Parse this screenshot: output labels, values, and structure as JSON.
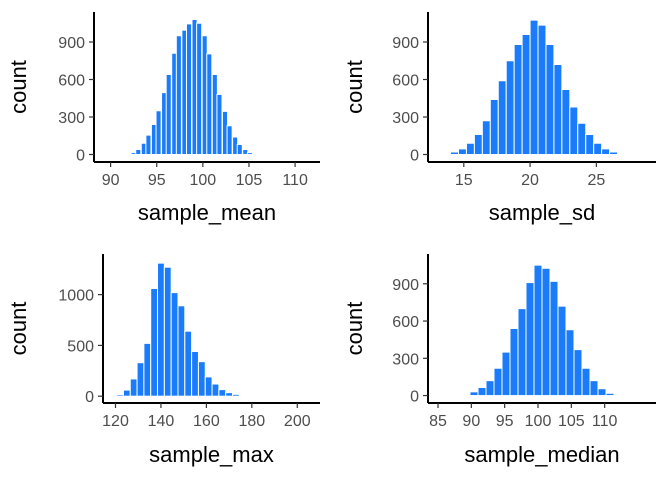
{
  "style": {
    "bar_color": "#1a7cfb",
    "bar_outline": "#ffffff"
  },
  "chart_data": [
    {
      "type": "bar",
      "xlabel": "sample_mean",
      "ylabel": "count",
      "xlim": [
        88.2,
        112.7
      ],
      "ylim": [
        -60,
        1140
      ],
      "xticks": [
        90,
        95,
        100,
        105,
        110
      ],
      "yticks": [
        0,
        300,
        600,
        900
      ],
      "bin_width": 0.55,
      "bins": [
        {
          "x": 91.9,
          "count": 5
        },
        {
          "x": 92.5,
          "count": 15
        },
        {
          "x": 93.0,
          "count": 40
        },
        {
          "x": 93.6,
          "count": 90
        },
        {
          "x": 94.1,
          "count": 155
        },
        {
          "x": 94.7,
          "count": 240
        },
        {
          "x": 95.2,
          "count": 350
        },
        {
          "x": 95.8,
          "count": 495
        },
        {
          "x": 96.3,
          "count": 640
        },
        {
          "x": 96.9,
          "count": 810
        },
        {
          "x": 97.4,
          "count": 950
        },
        {
          "x": 98.0,
          "count": 995
        },
        {
          "x": 98.5,
          "count": 1045
        },
        {
          "x": 99.1,
          "count": 1080
        },
        {
          "x": 99.6,
          "count": 1050
        },
        {
          "x": 100.2,
          "count": 950
        },
        {
          "x": 100.7,
          "count": 805
        },
        {
          "x": 101.3,
          "count": 640
        },
        {
          "x": 101.8,
          "count": 480
        },
        {
          "x": 102.4,
          "count": 345
        },
        {
          "x": 102.9,
          "count": 230
        },
        {
          "x": 103.5,
          "count": 140
        },
        {
          "x": 104.0,
          "count": 80
        },
        {
          "x": 104.6,
          "count": 40
        },
        {
          "x": 105.1,
          "count": 15
        },
        {
          "x": 105.7,
          "count": 5
        }
      ]
    },
    {
      "type": "bar",
      "xlabel": "sample_sd",
      "ylabel": "count",
      "xlim": [
        12.3,
        29.5
      ],
      "ylim": [
        -60,
        1140
      ],
      "xticks": [
        15,
        20,
        25
      ],
      "yticks": [
        0,
        300,
        600,
        900
      ],
      "bin_width": 0.6,
      "bins": [
        {
          "x": 14.3,
          "count": 20
        },
        {
          "x": 14.9,
          "count": 45
        },
        {
          "x": 15.5,
          "count": 90
        },
        {
          "x": 16.1,
          "count": 160
        },
        {
          "x": 16.7,
          "count": 270
        },
        {
          "x": 17.3,
          "count": 440
        },
        {
          "x": 17.9,
          "count": 590
        },
        {
          "x": 18.5,
          "count": 750
        },
        {
          "x": 19.1,
          "count": 880
        },
        {
          "x": 19.7,
          "count": 960
        },
        {
          "x": 20.3,
          "count": 1075
        },
        {
          "x": 20.9,
          "count": 1035
        },
        {
          "x": 21.5,
          "count": 880
        },
        {
          "x": 22.1,
          "count": 720
        },
        {
          "x": 22.7,
          "count": 520
        },
        {
          "x": 23.3,
          "count": 380
        },
        {
          "x": 23.9,
          "count": 250
        },
        {
          "x": 24.5,
          "count": 160
        },
        {
          "x": 25.1,
          "count": 90
        },
        {
          "x": 25.7,
          "count": 45
        },
        {
          "x": 26.3,
          "count": 20
        },
        {
          "x": 26.9,
          "count": 8
        }
      ]
    },
    {
      "type": "bar",
      "xlabel": "sample_max",
      "ylabel": "count",
      "xlim": [
        114.5,
        210
      ],
      "ylim": [
        -67,
        1400
      ],
      "xticks": [
        120,
        140,
        160,
        180,
        200
      ],
      "yticks": [
        0,
        500,
        1000
      ],
      "bin_width": 3.0,
      "bins": [
        {
          "x": 122.0,
          "count": 15
        },
        {
          "x": 125.0,
          "count": 60
        },
        {
          "x": 128.0,
          "count": 170
        },
        {
          "x": 131.0,
          "count": 330
        },
        {
          "x": 134.0,
          "count": 520
        },
        {
          "x": 137.0,
          "count": 1060
        },
        {
          "x": 140.0,
          "count": 1310
        },
        {
          "x": 143.0,
          "count": 1270
        },
        {
          "x": 146.0,
          "count": 1020
        },
        {
          "x": 149.0,
          "count": 890
        },
        {
          "x": 152.0,
          "count": 640
        },
        {
          "x": 155.0,
          "count": 440
        },
        {
          "x": 158.0,
          "count": 340
        },
        {
          "x": 161.0,
          "count": 190
        },
        {
          "x": 164.0,
          "count": 120
        },
        {
          "x": 167.0,
          "count": 65
        },
        {
          "x": 170.0,
          "count": 35
        },
        {
          "x": 173.0,
          "count": 18
        },
        {
          "x": 176.0,
          "count": 8
        },
        {
          "x": 179.0,
          "count": 4
        }
      ]
    },
    {
      "type": "bar",
      "xlabel": "sample_median",
      "ylabel": "count",
      "xlim": [
        83.5,
        117.7
      ],
      "ylim": [
        -60,
        1140
      ],
      "xticks": [
        85,
        90,
        95,
        100,
        105,
        110
      ],
      "yticks": [
        0,
        300,
        600,
        900
      ],
      "bin_width": 1.2,
      "bins": [
        {
          "x": 89.2,
          "count": 8
        },
        {
          "x": 90.4,
          "count": 30
        },
        {
          "x": 91.6,
          "count": 65
        },
        {
          "x": 92.8,
          "count": 120
        },
        {
          "x": 94.0,
          "count": 220
        },
        {
          "x": 95.2,
          "count": 350
        },
        {
          "x": 96.4,
          "count": 540
        },
        {
          "x": 97.6,
          "count": 700
        },
        {
          "x": 98.8,
          "count": 910
        },
        {
          "x": 100.0,
          "count": 1050
        },
        {
          "x": 101.2,
          "count": 1025
        },
        {
          "x": 102.4,
          "count": 920
        },
        {
          "x": 103.6,
          "count": 720
        },
        {
          "x": 104.8,
          "count": 530
        },
        {
          "x": 106.0,
          "count": 370
        },
        {
          "x": 107.2,
          "count": 220
        },
        {
          "x": 108.4,
          "count": 120
        },
        {
          "x": 109.6,
          "count": 55
        },
        {
          "x": 110.8,
          "count": 18
        }
      ]
    }
  ]
}
